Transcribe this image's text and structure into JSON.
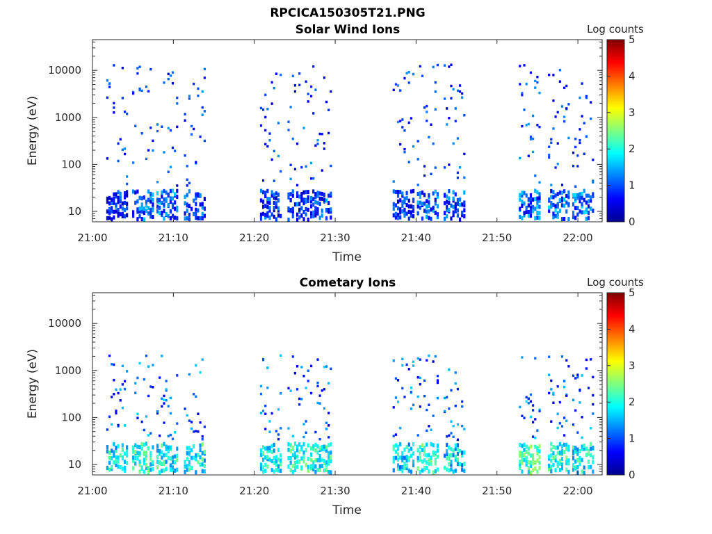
{
  "figure": {
    "title": "RPCICA150305T21.PNG",
    "colorbar_label": "Log counts",
    "colorbar_ticks": [
      "0",
      "1",
      "2",
      "3",
      "4",
      "5"
    ]
  },
  "chart_data": [
    {
      "type": "heatmap",
      "title": "Solar Wind Ions",
      "xlabel": "Time",
      "ylabel": "Energy (eV)",
      "xticks": [
        "21:00",
        "21:10",
        "21:20",
        "21:30",
        "21:40",
        "21:50",
        "22:00"
      ],
      "yticks": [
        "10",
        "100",
        "1000",
        "10000"
      ],
      "yscale": "log",
      "ylim": [
        6,
        45000
      ],
      "xlim": [
        "21:00",
        "22:03"
      ],
      "colorbar": {
        "label": "Log counts",
        "range": [
          0,
          5
        ],
        "colormap": "jet"
      },
      "grid": false,
      "bursts": [
        {
          "t": 3.0,
          "level": 1.3
        },
        {
          "t": 6.2,
          "level": 1.6
        },
        {
          "t": 9.2,
          "level": 1.7
        },
        {
          "t": 12.6,
          "level": 1.5
        },
        {
          "t": 22.0,
          "level": 1.4
        },
        {
          "t": 25.4,
          "level": 1.4
        },
        {
          "t": 28.2,
          "level": 1.6
        },
        {
          "t": 38.4,
          "level": 1.3
        },
        {
          "t": 41.4,
          "level": 1.6
        },
        {
          "t": 44.7,
          "level": 1.5
        },
        {
          "t": 54.0,
          "level": 1.7
        },
        {
          "t": 57.6,
          "level": 1.8
        },
        {
          "t": 60.6,
          "level": 1.8
        }
      ]
    },
    {
      "type": "heatmap",
      "title": "Cometary Ions",
      "xlabel": "Time",
      "ylabel": "Energy (eV)",
      "xticks": [
        "21:00",
        "21:10",
        "21:20",
        "21:30",
        "21:40",
        "21:50",
        "22:00"
      ],
      "yticks": [
        "10",
        "100",
        "1000",
        "10000"
      ],
      "yscale": "log",
      "ylim": [
        6,
        45000
      ],
      "xlim": [
        "21:00",
        "22:03"
      ],
      "colorbar": {
        "label": "Log counts",
        "range": [
          0,
          5
        ],
        "colormap": "jet"
      },
      "grid": false,
      "bursts": [
        {
          "t": 3.0,
          "level": 2.4
        },
        {
          "t": 6.2,
          "level": 2.6
        },
        {
          "t": 9.2,
          "level": 2.5
        },
        {
          "t": 12.6,
          "level": 2.5
        },
        {
          "t": 22.0,
          "level": 2.5
        },
        {
          "t": 25.4,
          "level": 2.6
        },
        {
          "t": 28.2,
          "level": 2.5
        },
        {
          "t": 38.4,
          "level": 2.3
        },
        {
          "t": 41.4,
          "level": 2.6
        },
        {
          "t": 44.7,
          "level": 2.3
        },
        {
          "t": 54.0,
          "level": 2.7
        },
        {
          "t": 57.6,
          "level": 2.6
        },
        {
          "t": 60.6,
          "level": 2.4
        }
      ]
    }
  ]
}
